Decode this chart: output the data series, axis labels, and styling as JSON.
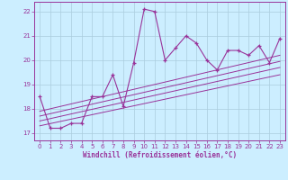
{
  "title": "",
  "xlabel": "Windchill (Refroidissement éolien,°C)",
  "ylabel": "",
  "background_color": "#cceeff",
  "grid_color": "#aaccdd",
  "line_color": "#993399",
  "ylim": [
    16.7,
    22.4
  ],
  "xlim": [
    -0.5,
    23.5
  ],
  "yticks": [
    17,
    18,
    19,
    20,
    21,
    22
  ],
  "xticks": [
    0,
    1,
    2,
    3,
    4,
    5,
    6,
    7,
    8,
    9,
    10,
    11,
    12,
    13,
    14,
    15,
    16,
    17,
    18,
    19,
    20,
    21,
    22,
    23
  ],
  "main_x": [
    0,
    1,
    2,
    3,
    4,
    5,
    6,
    7,
    8,
    9,
    10,
    11,
    12,
    13,
    14,
    15,
    16,
    17,
    18,
    19,
    20,
    21,
    22,
    23
  ],
  "main_y": [
    18.5,
    17.2,
    17.2,
    17.4,
    17.4,
    18.5,
    18.5,
    19.4,
    18.1,
    19.9,
    22.1,
    22.0,
    20.0,
    20.5,
    21.0,
    20.7,
    20.0,
    19.6,
    20.4,
    20.4,
    20.2,
    20.6,
    19.9,
    20.9
  ],
  "linear_lines": [
    {
      "x": [
        0,
        23
      ],
      "y": [
        17.3,
        19.4
      ]
    },
    {
      "x": [
        0,
        23
      ],
      "y": [
        17.5,
        19.7
      ]
    },
    {
      "x": [
        0,
        23
      ],
      "y": [
        17.7,
        19.95
      ]
    },
    {
      "x": [
        0,
        23
      ],
      "y": [
        17.9,
        20.2
      ]
    }
  ]
}
